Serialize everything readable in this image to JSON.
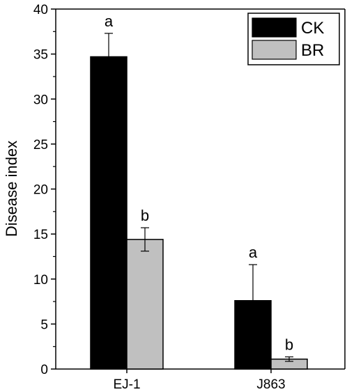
{
  "chart_data": {
    "type": "bar",
    "title": "",
    "xlabel": "",
    "ylabel": "Disease index",
    "categories": [
      "EJ-1",
      "J863"
    ],
    "series": [
      {
        "name": "CK",
        "color": "#000000",
        "values": [
          34.7,
          7.6
        ],
        "errors": [
          2.6,
          4.0
        ],
        "letters": [
          "a",
          "a"
        ]
      },
      {
        "name": "BR",
        "color": "#c0c0c0",
        "values": [
          14.4,
          1.1
        ],
        "errors": [
          1.3,
          0.25
        ],
        "letters": [
          "b",
          "b"
        ]
      }
    ],
    "ylim": [
      0,
      40
    ],
    "yticks": [
      0,
      5,
      10,
      15,
      20,
      25,
      30,
      35,
      40
    ],
    "grid": false,
    "legend_position": "top-right",
    "error_bars": true
  }
}
